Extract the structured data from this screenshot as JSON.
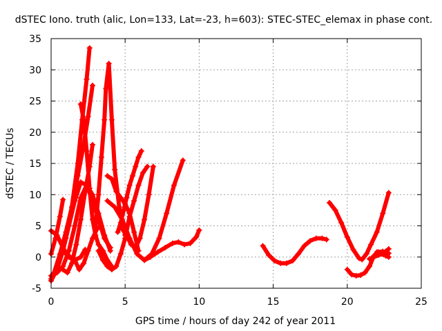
{
  "colors": {
    "series": "#ff0000",
    "grid": "#a0a0a0",
    "axis": "#000000"
  },
  "chart_data": {
    "type": "scatter",
    "title": "dSTEC Iono. truth (alic, Lon=133, Lat=-23, h=603): STEC-STEC_elemax in phase cont.",
    "xlabel": "GPS time / hours of day 242 of year 2011",
    "ylabel": "dSTEC  / TECUs",
    "xlim": [
      0,
      25
    ],
    "ylim": [
      -5,
      35
    ],
    "xticks": [
      0,
      5,
      10,
      15,
      20,
      25
    ],
    "yticks": [
      -5,
      0,
      5,
      10,
      15,
      20,
      25,
      30,
      35
    ],
    "grid": true,
    "marker": "plus",
    "series": [
      {
        "x": [
          0.0,
          0.3,
          0.6,
          0.8
        ],
        "y": [
          0.5,
          3.0,
          6.5,
          9.2
        ]
      },
      {
        "x": [
          0.0,
          0.4,
          0.8,
          1.2,
          1.6,
          2.0,
          2.3
        ],
        "y": [
          4.2,
          3.5,
          1.5,
          0.0,
          -0.5,
          0.0,
          1.2
        ]
      },
      {
        "x": [
          0.0,
          0.5,
          1.0,
          1.4,
          1.8,
          2.1,
          2.4,
          2.6
        ],
        "y": [
          -3.5,
          -1.0,
          3.0,
          8.0,
          15.0,
          22.0,
          28.5,
          33.5
        ]
      },
      {
        "x": [
          0.2,
          0.6,
          1.0,
          1.4,
          1.8,
          2.2,
          2.5,
          2.8
        ],
        "y": [
          -2.5,
          0.5,
          4.0,
          8.0,
          13.0,
          18.0,
          22.5,
          27.5
        ]
      },
      {
        "x": [
          0.0,
          0.4,
          0.8,
          1.2,
          1.6,
          2.0,
          2.4,
          2.8,
          3.2,
          3.6,
          4.0
        ],
        "y": [
          -3.0,
          -2.5,
          -1.5,
          1.0,
          5.0,
          9.5,
          11.5,
          10.0,
          7.0,
          3.5,
          1.0
        ]
      },
      {
        "x": [
          0.0,
          0.4,
          0.8,
          1.2,
          1.6,
          2.0,
          2.4,
          2.8,
          3.2,
          3.6,
          4.0
        ],
        "y": [
          -3.8,
          -2.0,
          1.0,
          5.0,
          9.0,
          12.0,
          11.5,
          9.0,
          6.0,
          3.0,
          1.5
        ]
      },
      {
        "x": [
          1.0,
          1.3,
          1.6,
          1.9,
          2.2,
          2.5,
          2.8,
          3.1,
          3.4
        ],
        "y": [
          0.5,
          0.0,
          -0.5,
          -2.0,
          -1.0,
          1.0,
          3.0,
          4.5,
          5.0
        ]
      },
      {
        "x": [
          0.8,
          1.1,
          1.4,
          1.7,
          2.0,
          2.3,
          2.6,
          2.8
        ],
        "y": [
          -2.0,
          -2.5,
          -1.0,
          2.0,
          6.0,
          10.5,
          14.5,
          18.0
        ]
      },
      {
        "x": [
          2.0,
          2.2,
          2.4,
          2.6,
          2.8,
          3.0,
          3.2,
          3.5,
          3.8,
          4.1
        ],
        "y": [
          24.5,
          22.0,
          17.0,
          11.0,
          6.0,
          3.5,
          2.0,
          1.0,
          -0.5,
          -1.5
        ]
      },
      {
        "x": [
          3.0,
          3.2,
          3.4,
          3.6,
          3.7,
          3.9,
          4.1,
          4.3,
          4.6,
          5.0
        ],
        "y": [
          5.0,
          10.0,
          16.0,
          22.0,
          27.0,
          31.0,
          22.0,
          14.0,
          8.0,
          3.5
        ]
      },
      {
        "x": [
          3.8,
          4.1,
          4.4,
          4.7,
          5.0,
          5.3,
          5.6,
          5.9
        ],
        "y": [
          13.0,
          12.5,
          10.5,
          9.5,
          8.5,
          7.0,
          4.0,
          1.0
        ]
      },
      {
        "x": [
          3.2,
          3.5,
          3.8,
          4.1,
          4.4,
          4.7,
          5.0,
          5.3,
          5.6,
          5.9,
          6.2,
          6.5
        ],
        "y": [
          1.0,
          -0.5,
          -1.5,
          -2.0,
          -1.5,
          0.5,
          3.0,
          6.5,
          9.0,
          11.5,
          13.5,
          14.5
        ]
      },
      {
        "x": [
          4.5,
          4.7,
          4.9,
          5.1,
          5.3,
          5.5,
          5.7,
          5.9,
          6.1
        ],
        "y": [
          4.0,
          5.5,
          7.5,
          9.5,
          11.5,
          13.0,
          14.5,
          16.0,
          17.0
        ]
      },
      {
        "x": [
          4.8,
          5.1,
          5.4,
          5.7,
          6.0,
          6.3,
          6.6,
          6.9
        ],
        "y": [
          4.5,
          3.5,
          2.0,
          1.5,
          3.0,
          6.0,
          10.0,
          14.5
        ]
      },
      {
        "x": [
          3.8,
          4.3,
          4.8,
          5.3,
          5.8,
          6.3,
          6.8,
          7.3,
          7.8,
          8.3,
          8.9
        ],
        "y": [
          9.0,
          8.0,
          6.0,
          3.0,
          0.5,
          -0.5,
          0.5,
          3.0,
          7.0,
          11.5,
          15.5
        ]
      },
      {
        "x": [
          6.3,
          6.7,
          7.2,
          7.7,
          8.2,
          8.6,
          9.0,
          9.4,
          9.8,
          10.0
        ],
        "y": [
          -0.5,
          0.0,
          0.8,
          1.5,
          2.2,
          2.4,
          2.0,
          2.2,
          3.2,
          4.3
        ]
      },
      {
        "x": [
          14.3,
          14.7,
          15.1,
          15.5,
          15.9,
          16.3,
          16.7,
          17.1,
          17.5,
          17.9,
          18.3,
          18.6
        ],
        "y": [
          1.8,
          0.3,
          -0.6,
          -1.0,
          -1.0,
          -0.6,
          0.5,
          1.8,
          2.6,
          3.0,
          3.0,
          2.8
        ]
      },
      {
        "x": [
          18.8,
          19.2,
          19.6,
          20.0,
          20.4,
          20.8,
          21.0,
          21.3,
          21.6,
          22.0,
          22.4,
          22.8
        ],
        "y": [
          8.7,
          7.5,
          5.5,
          3.2,
          1.2,
          -0.2,
          -0.4,
          0.5,
          2.0,
          4.0,
          7.0,
          10.3
        ]
      },
      {
        "x": [
          20.0,
          20.3,
          20.6,
          20.9,
          21.2,
          21.5,
          21.8,
          22.1,
          22.4,
          22.8
        ],
        "y": [
          -2.0,
          -2.8,
          -3.0,
          -2.9,
          -2.5,
          -1.5,
          0.2,
          0.8,
          0.9,
          0.6
        ]
      },
      {
        "x": [
          21.5,
          21.8,
          22.1,
          22.4,
          22.6,
          22.8
        ],
        "y": [
          -0.3,
          0.0,
          0.3,
          0.6,
          0.9,
          1.3
        ]
      },
      {
        "x": [
          22.0,
          22.3,
          22.6,
          22.8
        ],
        "y": [
          0.8,
          0.5,
          0.2,
          0.0
        ]
      }
    ]
  }
}
